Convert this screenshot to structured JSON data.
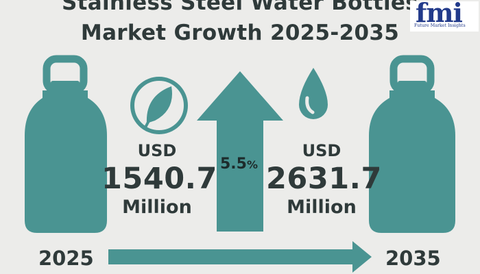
{
  "title_line1": "Stainless Steel Water Bottles",
  "title_line2": "Market Growth 2025-2035",
  "logo": {
    "name": "fmi",
    "subtitle": "Future Market Insights"
  },
  "start": {
    "year": "2025",
    "currency": "USD",
    "value": "1540.7",
    "unit": "Million"
  },
  "end": {
    "year": "2035",
    "currency": "USD",
    "value": "2631.7",
    "unit": "Million"
  },
  "cagr": {
    "value": "5.5",
    "symbol": "%"
  },
  "icons": [
    "water-bottle-icon",
    "leaf-icon",
    "growth-arrow-icon",
    "water-drop-icon",
    "timeline-arrow-icon"
  ],
  "colors": {
    "teal": "#4a9492",
    "background": "#ececea",
    "text": "#2f3a3a",
    "logo": "#223a8a"
  }
}
